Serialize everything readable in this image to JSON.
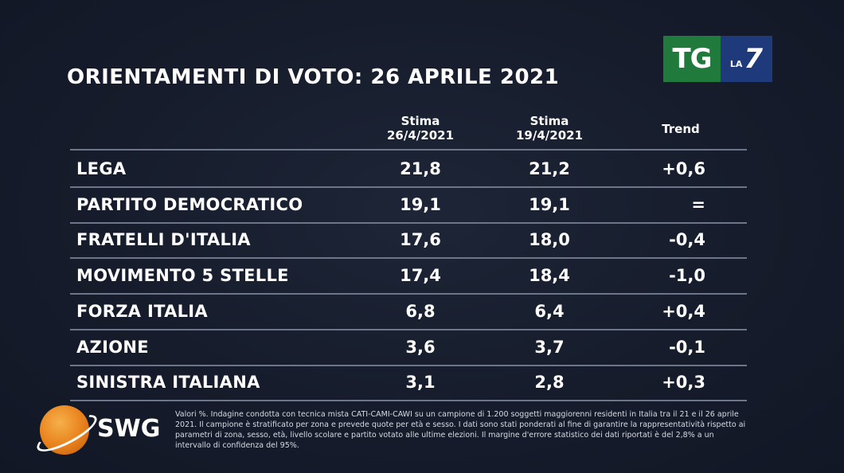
{
  "title": "ORIENTAMENTI DI VOTO: 26 APRILE 2021",
  "broadcaster": {
    "tg": "TG",
    "la": "LA",
    "seven": "7"
  },
  "columns": {
    "c1": {
      "line1": "Stima",
      "line2": "26/4/2021"
    },
    "c2": {
      "line1": "Stima",
      "line2": "19/4/2021"
    },
    "c3": "Trend"
  },
  "rows": [
    {
      "party": "LEGA",
      "v1": "21,8",
      "v2": "21,2",
      "trend": "+0,6"
    },
    {
      "party": "PARTITO DEMOCRATICO",
      "v1": "19,1",
      "v2": "19,1",
      "trend": "="
    },
    {
      "party": "FRATELLI D'ITALIA",
      "v1": "17,6",
      "v2": "18,0",
      "trend": "-0,4"
    },
    {
      "party": "MOVIMENTO 5 STELLE",
      "v1": "17,4",
      "v2": "18,4",
      "trend": "-1,0"
    },
    {
      "party": "FORZA ITALIA",
      "v1": "6,8",
      "v2": "6,4",
      "trend": "+0,4"
    },
    {
      "party": "AZIONE",
      "v1": "3,6",
      "v2": "3,7",
      "trend": "-0,1"
    },
    {
      "party": "SINISTRA ITALIANA",
      "v1": "3,1",
      "v2": "2,8",
      "trend": "+0,3"
    }
  ],
  "pollster": "SWG",
  "footnote": "Valori %. Indagine condotta con tecnica mista CATI-CAMI-CAWI su un campione di 1.200 soggetti maggiorenni residenti in Italia tra il 21 e il 26 aprile 2021. Il campione è stratificato per zona e prevede quote per età e sesso. I dati sono stati ponderati al fine di garantire la rappresentatività rispetto ai parametri di zona, sesso, età, livello scolare e partito votato alle ultime elezioni. Il margine d'errore statistico dei dati riportati è del 2,8% a un intervallo di confidenza del 95%.",
  "colors": {
    "background": "#161c2b",
    "rule": "#6d7688",
    "tg_green": "#1f7a3c",
    "la7_blue": "#1f3a7a",
    "swg_orange": "#e8801b"
  }
}
